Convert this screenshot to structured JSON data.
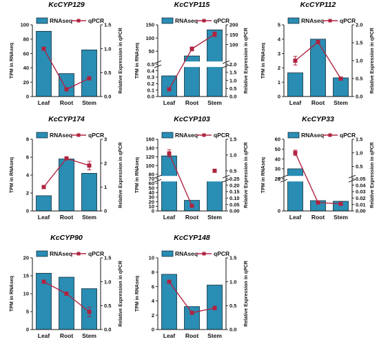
{
  "colors": {
    "bar": "#2a8db4",
    "bar_stroke": "#0f2d3a",
    "line": "#b02440",
    "axis": "#111111"
  },
  "legend": {
    "bars": "RNAseq",
    "line": "qPCR"
  },
  "ylabel_left": "TPM in RNAseq",
  "ylabel_right": "Relative Expression in qPCR",
  "chart_data": [
    {
      "type": "bar+line",
      "title": "KcCYP129",
      "categories": [
        "Leaf",
        "Root",
        "Stem"
      ],
      "bars": [
        91,
        32,
        65
      ],
      "line": [
        1.0,
        0.15,
        0.38
      ],
      "line_err": [
        0,
        0,
        0
      ],
      "left_axis": {
        "ticks": [
          "0",
          "20",
          "40",
          "60",
          "80",
          "100"
        ]
      },
      "right_axis": {
        "ticks": [
          "0.0",
          "0.5",
          "1.0",
          "1.5"
        ]
      },
      "ylim_left": [
        0,
        100
      ],
      "ylim_right": [
        0,
        1.5
      ]
    },
    {
      "type": "bar+line",
      "title": "KcCYP115",
      "categories": [
        "Leaf",
        "Root",
        "Stem"
      ],
      "bars": [
        0.32,
        32,
        131
      ],
      "line": [
        0.45,
        78,
        152
      ],
      "line_err": [
        0.08,
        10,
        12
      ],
      "left_axis": {
        "broken": true,
        "lower": [
          0,
          0.5
        ],
        "upper": [
          0.5,
          150
        ],
        "lower_ticks": [
          "0.0",
          "0.1",
          "0.2",
          "0.3",
          "0.4",
          "0.5"
        ],
        "upper_ticks": [
          "50",
          "100",
          "150"
        ]
      },
      "right_axis": {
        "broken": true,
        "lower": [
          0,
          2.0
        ],
        "upper": [
          0,
          200
        ],
        "lower_ticks": [
          "0.0",
          "0.5",
          "1.0",
          "1.5",
          "2.0"
        ],
        "upper_ticks": [
          "100",
          "150",
          "200"
        ]
      }
    },
    {
      "type": "bar+line",
      "title": "KcCYP112",
      "categories": [
        "Leaf",
        "Root",
        "Stem"
      ],
      "bars": [
        1.65,
        4.0,
        1.3
      ],
      "line": [
        1.0,
        1.52,
        0.5
      ],
      "line_err": [
        0.12,
        0.03,
        0
      ],
      "left_axis": {
        "ticks": [
          "0",
          "1",
          "2",
          "3",
          "4",
          "5"
        ]
      },
      "right_axis": {
        "ticks": [
          "0.0",
          "0.5",
          "1.0",
          "1.5",
          "2.0"
        ]
      },
      "ylim_left": [
        0,
        5
      ],
      "ylim_right": [
        0,
        2.0
      ]
    },
    {
      "type": "bar+line",
      "title": "KcCYP174",
      "categories": [
        "Leaf",
        "Root",
        "Stem"
      ],
      "bars": [
        1.7,
        5.8,
        4.2
      ],
      "line": [
        1.0,
        2.2,
        1.9
      ],
      "line_err": [
        0,
        0.05,
        0.18
      ],
      "left_axis": {
        "ticks": [
          "0",
          "2",
          "4",
          "6",
          "8"
        ]
      },
      "right_axis": {
        "ticks": [
          "0",
          "1",
          "2",
          "3"
        ]
      },
      "ylim_left": [
        0,
        8
      ],
      "ylim_right": [
        0,
        3
      ]
    },
    {
      "type": "bar+line",
      "title": "KcCYP103",
      "categories": [
        "Leaf",
        "Root",
        "Stem"
      ],
      "bars": [
        122,
        23,
        66
      ],
      "line": [
        1.05,
        0.04,
        0.5
      ],
      "line_err": [
        0.12,
        0.008,
        0
      ],
      "left_axis": {
        "broken": true,
        "lower": [
          0,
          70
        ],
        "upper": [
          70,
          160
        ],
        "lower_ticks": [
          "0",
          "10",
          "20",
          "30",
          "40",
          "50",
          "60",
          "70"
        ],
        "upper_ticks": [
          "80",
          "100",
          "120",
          "140",
          "160"
        ]
      },
      "right_axis": {
        "broken": true,
        "lower": [
          0,
          0.25
        ],
        "upper": [
          0.25,
          1.5
        ],
        "lower_ticks": [
          "0.00",
          "0.05",
          "0.10",
          "0.15",
          "0.20",
          "0.25"
        ],
        "upper_ticks": [
          "0.5",
          "1.0",
          "1.5"
        ]
      },
      "line_segments": [
        [
          0,
          1
        ]
      ]
    },
    {
      "type": "bar+line",
      "title": "KcCYP33",
      "categories": [
        "Leaf",
        "Root",
        "Stem"
      ],
      "bars": [
        30,
        1.6,
        1.5
      ],
      "line": [
        1.0,
        0.013,
        0.011
      ],
      "line_err": [
        0.1,
        0.002,
        0.001
      ],
      "left_axis": {
        "broken": true,
        "lower": [
          0,
          5
        ],
        "upper": [
          20,
          60
        ],
        "lower_ticks": [
          "0",
          "5"
        ],
        "upper_ticks": [
          "20",
          "30",
          "40",
          "50",
          "60"
        ]
      },
      "right_axis": {
        "broken": true,
        "lower": [
          0,
          0.05
        ],
        "upper": [
          0.05,
          1.5
        ],
        "lower_ticks": [
          "0.00",
          "0.01",
          "0.02",
          "0.03",
          "0.04",
          "0.05"
        ],
        "upper_ticks": [
          "0.5",
          "1.0",
          "1.5"
        ]
      }
    },
    {
      "type": "bar+line",
      "title": "KcCYP90",
      "categories": [
        "Leaf",
        "Root",
        "Stem"
      ],
      "bars": [
        15.7,
        14.6,
        11.4
      ],
      "line": [
        1.0,
        0.75,
        0.37
      ],
      "line_err": [
        0,
        0,
        0.1
      ],
      "left_axis": {
        "ticks": [
          "0",
          "5",
          "10",
          "15",
          "20"
        ]
      },
      "right_axis": {
        "ticks": [
          "0.0",
          "0.5",
          "1.0",
          "1.5"
        ]
      },
      "ylim_left": [
        0,
        20
      ],
      "ylim_right": [
        0,
        1.5
      ]
    },
    {
      "type": "bar+line",
      "title": "KcCYP148",
      "categories": [
        "Leaf",
        "Root",
        "Stem"
      ],
      "bars": [
        7.7,
        3.2,
        6.2
      ],
      "line": [
        1.0,
        0.35,
        0.45
      ],
      "line_err": [
        0,
        0,
        0.04
      ],
      "left_axis": {
        "ticks": [
          "0",
          "2",
          "4",
          "6",
          "8",
          "10"
        ]
      },
      "right_axis": {
        "ticks": [
          "0.0",
          "0.5",
          "1.0",
          "1.5"
        ]
      },
      "ylim_left": [
        0,
        10
      ],
      "ylim_right": [
        0,
        1.5
      ]
    }
  ]
}
